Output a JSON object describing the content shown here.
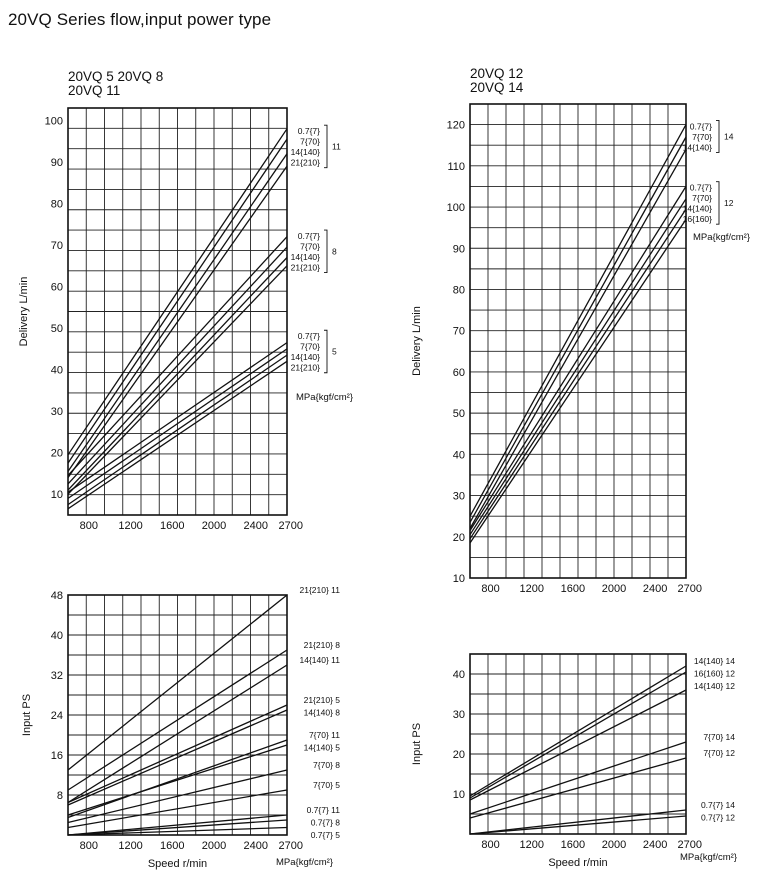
{
  "page_title": "20VQ Series flow,input power type",
  "chart_data": [
    {
      "id": "delivery-left",
      "type": "line",
      "title_lines": [
        "20VQ 5   20VQ 8",
        "20VQ 11"
      ],
      "xlabel": "",
      "ylabel": "Delivery L/min",
      "xlim": [
        600,
        2700
      ],
      "ylim": [
        5,
        103
      ],
      "xticks": [
        "800",
        "1200",
        "1600",
        "2000",
        "2400",
        "2700"
      ],
      "xtick_values": [
        800,
        1200,
        1600,
        2000,
        2400,
        2700
      ],
      "yticks": [
        "10",
        "20",
        "30",
        "40",
        "50",
        "60",
        "70",
        "80",
        "90",
        "100"
      ],
      "ytick_values": [
        10,
        20,
        30,
        40,
        50,
        60,
        70,
        80,
        90,
        100
      ],
      "grid": true,
      "unit_note": "MPa{kgf/cm²}",
      "series": [
        {
          "name": "0.7{7}",
          "group": "11",
          "x": [
            600,
            2700
          ],
          "y": [
            19.5,
            98
          ]
        },
        {
          "name": "7{70}",
          "group": "11",
          "x": [
            600,
            2700
          ],
          "y": [
            17.5,
            95.5
          ]
        },
        {
          "name": "14{140}",
          "group": "11",
          "x": [
            600,
            2700
          ],
          "y": [
            15.5,
            92
          ]
        },
        {
          "name": "21{210}",
          "group": "11",
          "x": [
            600,
            2700
          ],
          "y": [
            14,
            89
          ]
        },
        {
          "name": "0.7{7}",
          "group": "8",
          "x": [
            600,
            2700
          ],
          "y": [
            14.5,
            72
          ]
        },
        {
          "name": "7{70}",
          "group": "8",
          "x": [
            600,
            2700
          ],
          "y": [
            12.5,
            69.5
          ]
        },
        {
          "name": "14{140}",
          "group": "8",
          "x": [
            600,
            2700
          ],
          "y": [
            11,
            67
          ]
        },
        {
          "name": "21{210}",
          "group": "8",
          "x": [
            600,
            2700
          ],
          "y": [
            10,
            65
          ]
        },
        {
          "name": "0.7{7}",
          "group": "5",
          "x": [
            600,
            2700
          ],
          "y": [
            10.5,
            46.5
          ]
        },
        {
          "name": "7{70}",
          "group": "5",
          "x": [
            600,
            2700
          ],
          "y": [
            9,
            45
          ]
        },
        {
          "name": "14{140}",
          "group": "5",
          "x": [
            600,
            2700
          ],
          "y": [
            7.5,
            43.5
          ]
        },
        {
          "name": "21{210}",
          "group": "5",
          "x": [
            600,
            2700
          ],
          "y": [
            6.5,
            42
          ]
        }
      ]
    },
    {
      "id": "input-left",
      "type": "line",
      "title_lines": [],
      "xlabel": "Speed r/min",
      "ylabel": "Input PS",
      "xlim": [
        600,
        2700
      ],
      "ylim": [
        0,
        48
      ],
      "xticks": [
        "800",
        "1200",
        "1600",
        "2000",
        "2400",
        "2700"
      ],
      "xtick_values": [
        800,
        1200,
        1600,
        2000,
        2400,
        2700
      ],
      "yticks": [
        "8",
        "16",
        "24",
        "32",
        "40",
        "48"
      ],
      "ytick_values": [
        8,
        16,
        24,
        32,
        40,
        48
      ],
      "grid": true,
      "unit_note": "MPa{kgf/cm²}",
      "series": [
        {
          "name": "21{210} 11",
          "x": [
            600,
            2700
          ],
          "y": [
            13,
            48
          ]
        },
        {
          "name": "21{210} 8",
          "x": [
            600,
            2700
          ],
          "y": [
            9,
            37
          ]
        },
        {
          "name": "14{140} 11",
          "x": [
            600,
            2700
          ],
          "y": [
            6.5,
            34
          ]
        },
        {
          "name": "21{210} 5",
          "x": [
            600,
            2700
          ],
          "y": [
            6.5,
            26
          ]
        },
        {
          "name": "14{140} 8",
          "x": [
            600,
            2700
          ],
          "y": [
            6,
            25
          ]
        },
        {
          "name": "7{70} 11",
          "x": [
            600,
            2700
          ],
          "y": [
            3.5,
            19
          ]
        },
        {
          "name": "14{140} 5",
          "x": [
            600,
            2700
          ],
          "y": [
            4,
            18
          ]
        },
        {
          "name": "7{70} 8",
          "x": [
            600,
            2700
          ],
          "y": [
            2.5,
            13
          ]
        },
        {
          "name": "7{70} 5",
          "x": [
            600,
            2700
          ],
          "y": [
            1.5,
            9
          ]
        },
        {
          "name": "0.7{7} 11",
          "x": [
            600,
            2700
          ],
          "y": [
            0,
            4
          ]
        },
        {
          "name": "0.7{7} 8",
          "x": [
            600,
            2700
          ],
          "y": [
            0,
            3
          ]
        },
        {
          "name": "0.7{7} 5",
          "x": [
            600,
            2700
          ],
          "y": [
            0,
            1.5
          ]
        }
      ]
    },
    {
      "id": "delivery-right",
      "type": "line",
      "title_lines": [
        "20VQ 12",
        "20VQ 14"
      ],
      "xlabel": "",
      "ylabel": "Delivery L/min",
      "xlim": [
        600,
        2700
      ],
      "ylim": [
        10,
        125
      ],
      "xticks": [
        "800",
        "1200",
        "1600",
        "2000",
        "2400",
        "2700"
      ],
      "xtick_values": [
        800,
        1200,
        1600,
        2000,
        2400,
        2700
      ],
      "yticks": [
        "10",
        "20",
        "30",
        "40",
        "50",
        "60",
        "70",
        "80",
        "90",
        "100",
        "110",
        "120"
      ],
      "ytick_values": [
        10,
        20,
        30,
        40,
        50,
        60,
        70,
        80,
        90,
        100,
        110,
        120
      ],
      "grid": true,
      "unit_note": "MPa{kgf/cm²}",
      "series": [
        {
          "name": "0.7{7}",
          "group": "14",
          "x": [
            600,
            2700
          ],
          "y": [
            25,
            120
          ]
        },
        {
          "name": "7{70}",
          "group": "14",
          "x": [
            600,
            2700
          ],
          "y": [
            23.5,
            117
          ]
        },
        {
          "name": "14{140}",
          "group": "14",
          "x": [
            600,
            2700
          ],
          "y": [
            22,
            114
          ]
        },
        {
          "name": "0.7{7}",
          "group": "12",
          "x": [
            600,
            2700
          ],
          "y": [
            21.5,
            105
          ]
        },
        {
          "name": "7{70}",
          "group": "12",
          "x": [
            600,
            2700
          ],
          "y": [
            20.5,
            102
          ]
        },
        {
          "name": "14{140}",
          "group": "12",
          "x": [
            600,
            2700
          ],
          "y": [
            19.5,
            99.5
          ]
        },
        {
          "name": "16{160}",
          "group": "12",
          "x": [
            600,
            2700
          ],
          "y": [
            18.5,
            97
          ]
        }
      ]
    },
    {
      "id": "input-right",
      "type": "line",
      "title_lines": [],
      "xlabel": "Speed r/min",
      "ylabel": "Input PS",
      "xlim": [
        600,
        2700
      ],
      "ylim": [
        0,
        45
      ],
      "xticks": [
        "800",
        "1200",
        "1600",
        "2000",
        "2400",
        "2700"
      ],
      "xtick_values": [
        800,
        1200,
        1600,
        2000,
        2400,
        2700
      ],
      "yticks": [
        "10",
        "20",
        "30",
        "40"
      ],
      "ytick_values": [
        10,
        20,
        30,
        40
      ],
      "grid": true,
      "unit_note": "MPa{kgf/cm²}",
      "series": [
        {
          "name": "14{140} 14",
          "x": [
            600,
            2700
          ],
          "y": [
            9.5,
            42
          ]
        },
        {
          "name": "16{160} 12",
          "x": [
            600,
            2700
          ],
          "y": [
            9,
            40.5
          ]
        },
        {
          "name": "14{140} 12",
          "x": [
            600,
            2700
          ],
          "y": [
            8.5,
            36
          ]
        },
        {
          "name": "7{70} 14",
          "x": [
            600,
            2700
          ],
          "y": [
            5,
            23
          ]
        },
        {
          "name": "7{70} 12",
          "x": [
            600,
            2700
          ],
          "y": [
            4,
            19
          ]
        },
        {
          "name": "0.7{7} 14",
          "x": [
            600,
            2700
          ],
          "y": [
            0,
            6
          ]
        },
        {
          "name": "0.7{7} 12",
          "x": [
            600,
            2700
          ],
          "y": [
            0,
            4.5
          ]
        }
      ]
    }
  ]
}
